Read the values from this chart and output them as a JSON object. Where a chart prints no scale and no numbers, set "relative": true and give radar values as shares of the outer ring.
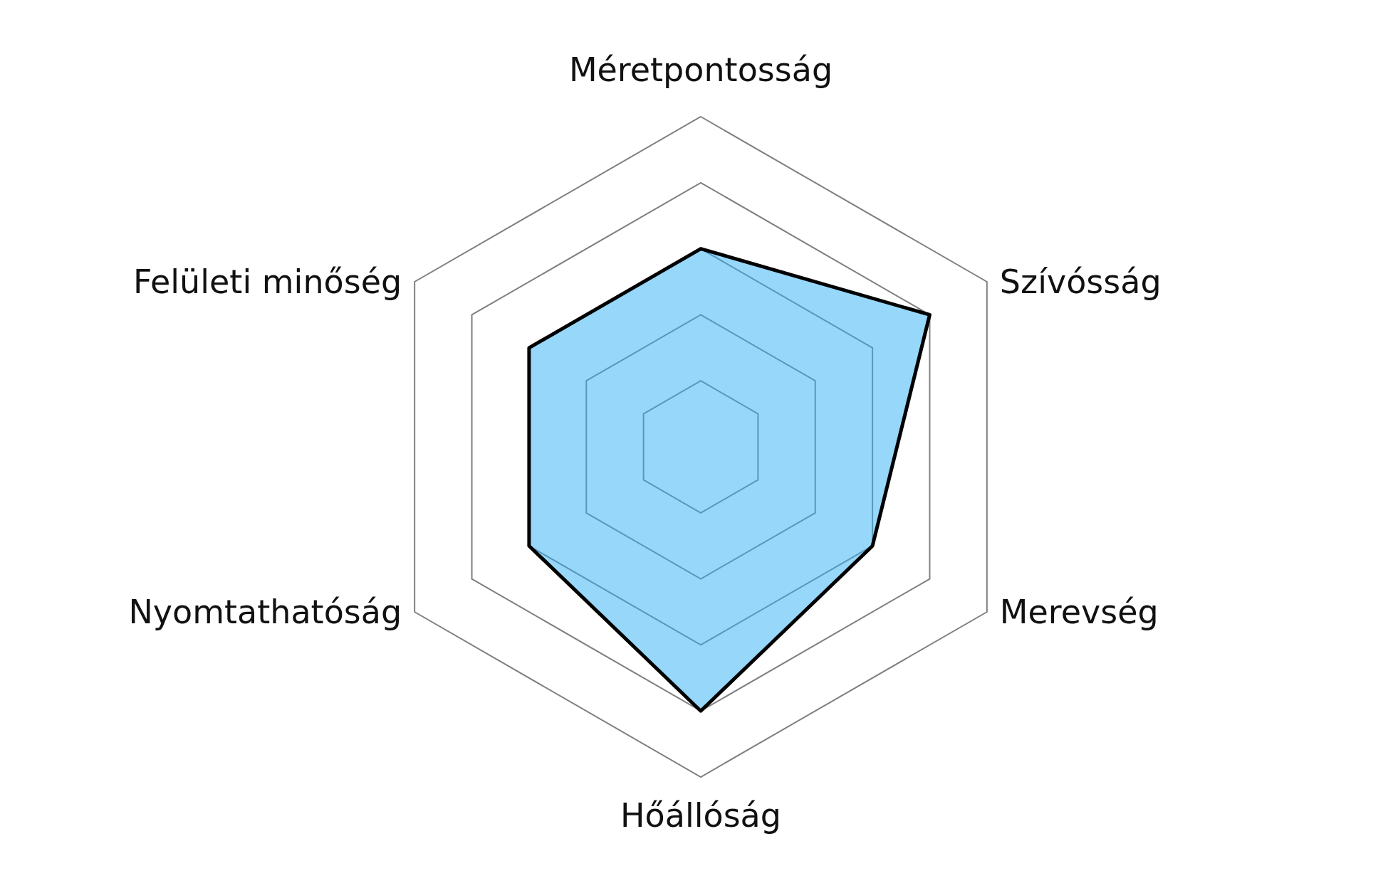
{
  "chart_data": {
    "type": "radar",
    "relative": true,
    "grid": true,
    "categories": [
      "Méretpontosság",
      "Szívósság",
      "Merevség",
      "Hőállóság",
      "Nyomtathatóság",
      "Felületi minőség"
    ],
    "series": [
      {
        "color": "#2fb0f5",
        "values": [
          0.6,
          0.8,
          0.6,
          0.8,
          0.6,
          0.6
        ]
      }
    ]
  }
}
